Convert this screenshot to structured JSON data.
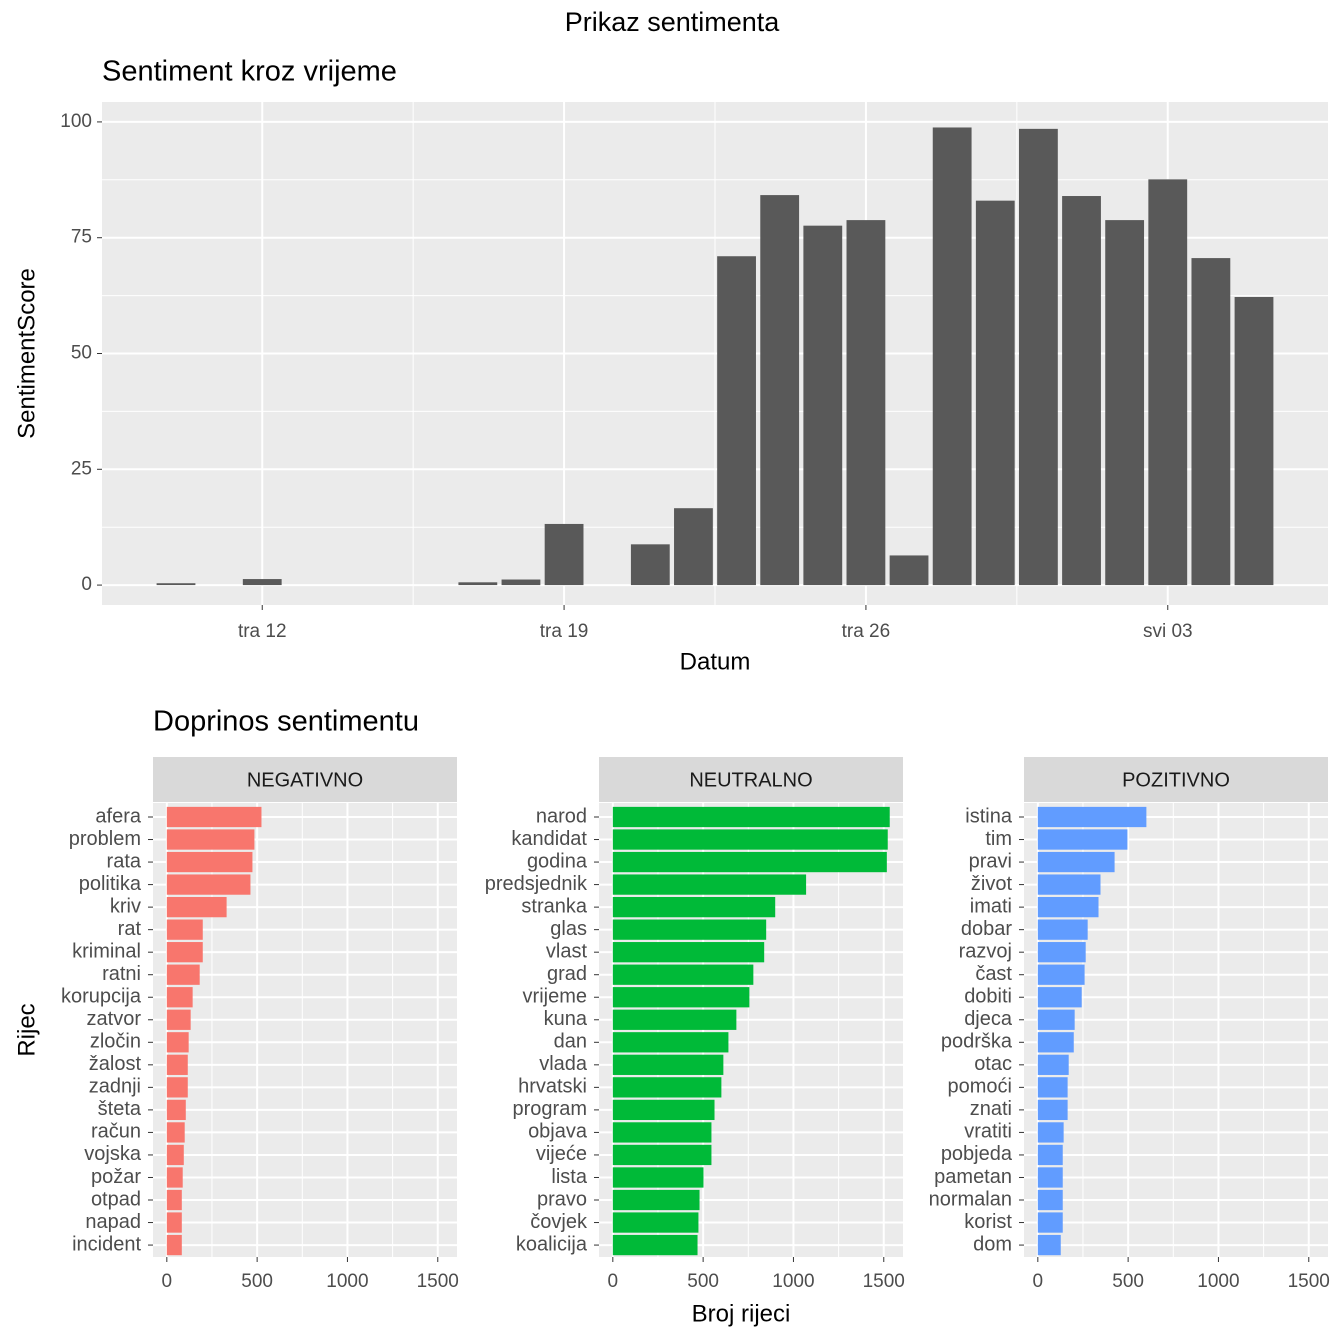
{
  "title": "Prikaz sentimenta",
  "chart_data": [
    {
      "type": "bar",
      "title": "Sentiment kroz vrijeme",
      "xlabel": "Datum",
      "ylabel": "SentimentScore",
      "categories": [
        null,
        null,
        "tra 12",
        null,
        null,
        null,
        null,
        null,
        null,
        "tra 19",
        null,
        null,
        null,
        null,
        null,
        null,
        "tra 26",
        null,
        null,
        null,
        null,
        null,
        null,
        "svi 03",
        null,
        null
      ],
      "values": [
        0.4,
        null,
        1.3,
        null,
        null,
        null,
        null,
        0.6,
        1.2,
        13.2,
        null,
        8.8,
        16.6,
        71,
        84.2,
        77.6,
        78.8,
        6.4,
        98.8,
        83,
        98.5,
        84,
        78.8,
        87.6,
        70.6,
        62.2
      ],
      "color": "#595959",
      "ylim": [
        -4.3,
        104.3
      ],
      "yticks": [
        0,
        25,
        50,
        75,
        100
      ],
      "grid": true
    },
    {
      "type": "barh",
      "title": "Doprinos sentimentu",
      "xlabel": "Broj rijeci",
      "ylabel": "Rijec",
      "xlim": [
        -76.5,
        1606.5
      ],
      "xticks": [
        0,
        500,
        1000,
        1500
      ],
      "grid": true,
      "facets": [
        {
          "name": "NEGATIVNO",
          "color": "#f8766d",
          "categories": [
            "afera",
            "problem",
            "rata",
            "politika",
            "kriv",
            "rat",
            "kriminal",
            "ratni",
            "korupcija",
            "zatvor",
            "zločin",
            "žalost",
            "zadnji",
            "šteta",
            "račun",
            "vojska",
            "požar",
            "otpad",
            "napad",
            "incident"
          ],
          "values": [
            524,
            485,
            474,
            463,
            331,
            199,
            199,
            182,
            143,
            132,
            121,
            116,
            116,
            105,
            99,
            94,
            88,
            83,
            83,
            83
          ]
        },
        {
          "name": "NEUTRALNO",
          "color": "#00ba38",
          "categories": [
            "narod",
            "kandidat",
            "godina",
            "predsjednik",
            "stranka",
            "glas",
            "vlast",
            "grad",
            "vrijeme",
            "kuna",
            "dan",
            "vlada",
            "hrvatski",
            "program",
            "objava",
            "vijeće",
            "lista",
            "pravo",
            "čovjek",
            "koalicija"
          ],
          "values": [
            1533,
            1522,
            1517,
            1070,
            899,
            849,
            838,
            778,
            756,
            684,
            640,
            612,
            601,
            563,
            546,
            546,
            502,
            480,
            474,
            469
          ]
        },
        {
          "name": "POZITIVNO",
          "color": "#619cff",
          "categories": [
            "istina",
            "tim",
            "pravi",
            "život",
            "imati",
            "dobar",
            "razvoj",
            "čast",
            "dobiti",
            "djeca",
            "podrška",
            "otac",
            "pomoći",
            "znati",
            "vratiti",
            "pobjeda",
            "pametan",
            "normalan",
            "korist",
            "dom"
          ],
          "values": [
            601,
            496,
            425,
            347,
            336,
            276,
            265,
            259,
            243,
            204,
            199,
            171,
            165,
            165,
            143,
            138,
            138,
            138,
            138,
            127
          ]
        }
      ]
    }
  ]
}
